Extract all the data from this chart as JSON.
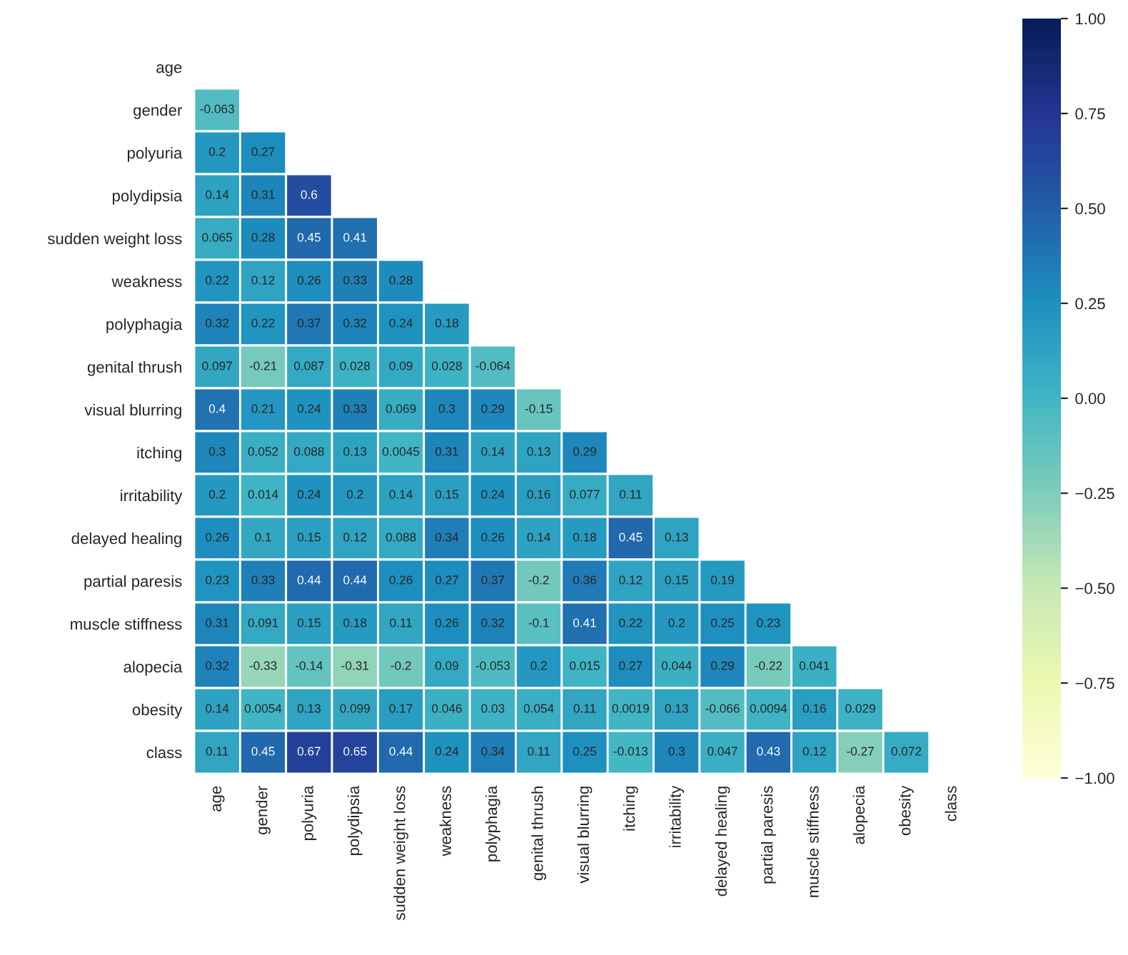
{
  "chart_data": {
    "type": "heatmap",
    "categories": [
      "age",
      "gender",
      "polyuria",
      "polydipsia",
      "sudden weight loss",
      "weakness",
      "polyphagia",
      "genital thrush",
      "visual blurring",
      "itching",
      "irritability",
      "delayed healing",
      "partial paresis",
      "muscle stiffness",
      "alopecia",
      "obesity",
      "class"
    ],
    "y_categories": [
      "age",
      "gender",
      "polyuria",
      "polydipsia",
      "sudden weight loss",
      "weakness",
      "polyphagia",
      "genital thrush",
      "visual blurring",
      "itching",
      "irritability",
      "delayed healing",
      "partial paresis",
      "muscle stiffness",
      "alopecia",
      "obesity",
      "class"
    ],
    "cells": [
      [
        null,
        null,
        null,
        null,
        null,
        null,
        null,
        null,
        null,
        null,
        null,
        null,
        null,
        null,
        null,
        null,
        null
      ],
      [
        -0.063,
        null,
        null,
        null,
        null,
        null,
        null,
        null,
        null,
        null,
        null,
        null,
        null,
        null,
        null,
        null,
        null
      ],
      [
        0.2,
        0.27,
        null,
        null,
        null,
        null,
        null,
        null,
        null,
        null,
        null,
        null,
        null,
        null,
        null,
        null,
        null
      ],
      [
        0.14,
        0.31,
        0.6,
        null,
        null,
        null,
        null,
        null,
        null,
        null,
        null,
        null,
        null,
        null,
        null,
        null,
        null
      ],
      [
        0.065,
        0.28,
        0.45,
        0.41,
        null,
        null,
        null,
        null,
        null,
        null,
        null,
        null,
        null,
        null,
        null,
        null,
        null
      ],
      [
        0.22,
        0.12,
        0.26,
        0.33,
        0.28,
        null,
        null,
        null,
        null,
        null,
        null,
        null,
        null,
        null,
        null,
        null,
        null
      ],
      [
        0.32,
        0.22,
        0.37,
        0.32,
        0.24,
        0.18,
        null,
        null,
        null,
        null,
        null,
        null,
        null,
        null,
        null,
        null,
        null
      ],
      [
        0.097,
        -0.21,
        0.087,
        0.028,
        0.09,
        0.028,
        -0.064,
        null,
        null,
        null,
        null,
        null,
        null,
        null,
        null,
        null,
        null
      ],
      [
        0.4,
        0.21,
        0.24,
        0.33,
        0.069,
        0.3,
        0.29,
        -0.15,
        null,
        null,
        null,
        null,
        null,
        null,
        null,
        null,
        null
      ],
      [
        0.3,
        0.052,
        0.088,
        0.13,
        0.0045,
        0.31,
        0.14,
        0.13,
        0.29,
        null,
        null,
        null,
        null,
        null,
        null,
        null,
        null
      ],
      [
        0.2,
        0.014,
        0.24,
        0.2,
        0.14,
        0.15,
        0.24,
        0.16,
        0.077,
        0.11,
        null,
        null,
        null,
        null,
        null,
        null,
        null
      ],
      [
        0.26,
        0.1,
        0.15,
        0.12,
        0.088,
        0.34,
        0.26,
        0.14,
        0.18,
        0.45,
        0.13,
        null,
        null,
        null,
        null,
        null,
        null
      ],
      [
        0.23,
        0.33,
        0.44,
        0.44,
        0.26,
        0.27,
        0.37,
        -0.2,
        0.36,
        0.12,
        0.15,
        0.19,
        null,
        null,
        null,
        null,
        null
      ],
      [
        0.31,
        0.091,
        0.15,
        0.18,
        0.11,
        0.26,
        0.32,
        -0.1,
        0.41,
        0.22,
        0.2,
        0.25,
        0.23,
        null,
        null,
        null,
        null
      ],
      [
        0.32,
        -0.33,
        -0.14,
        -0.31,
        -0.2,
        0.09,
        -0.053,
        0.2,
        0.015,
        0.27,
        0.044,
        0.29,
        -0.22,
        0.041,
        null,
        null,
        null
      ],
      [
        0.14,
        0.0054,
        0.13,
        0.099,
        0.17,
        0.046,
        0.03,
        0.054,
        0.11,
        0.0019,
        0.13,
        -0.066,
        0.0094,
        0.16,
        0.029,
        null,
        null
      ],
      [
        0.11,
        0.45,
        0.67,
        0.65,
        0.44,
        0.24,
        0.34,
        0.11,
        0.25,
        -0.013,
        0.3,
        0.047,
        0.43,
        0.12,
        -0.27,
        0.072,
        null
      ]
    ],
    "data_labels": true,
    "clim": [
      -1,
      1
    ],
    "cticks": [
      {
        "value": -1,
        "label": "−1.00"
      },
      {
        "value": -0.75,
        "label": "−0.75"
      },
      {
        "value": -0.5,
        "label": "−0.50"
      },
      {
        "value": -0.25,
        "label": "−0.25"
      },
      {
        "value": 0,
        "label": "0.00"
      },
      {
        "value": 0.25,
        "label": "0.25"
      },
      {
        "value": 0.5,
        "label": "0.50"
      },
      {
        "value": 0.75,
        "label": "0.75"
      },
      {
        "value": 1,
        "label": "1.00"
      }
    ]
  }
}
